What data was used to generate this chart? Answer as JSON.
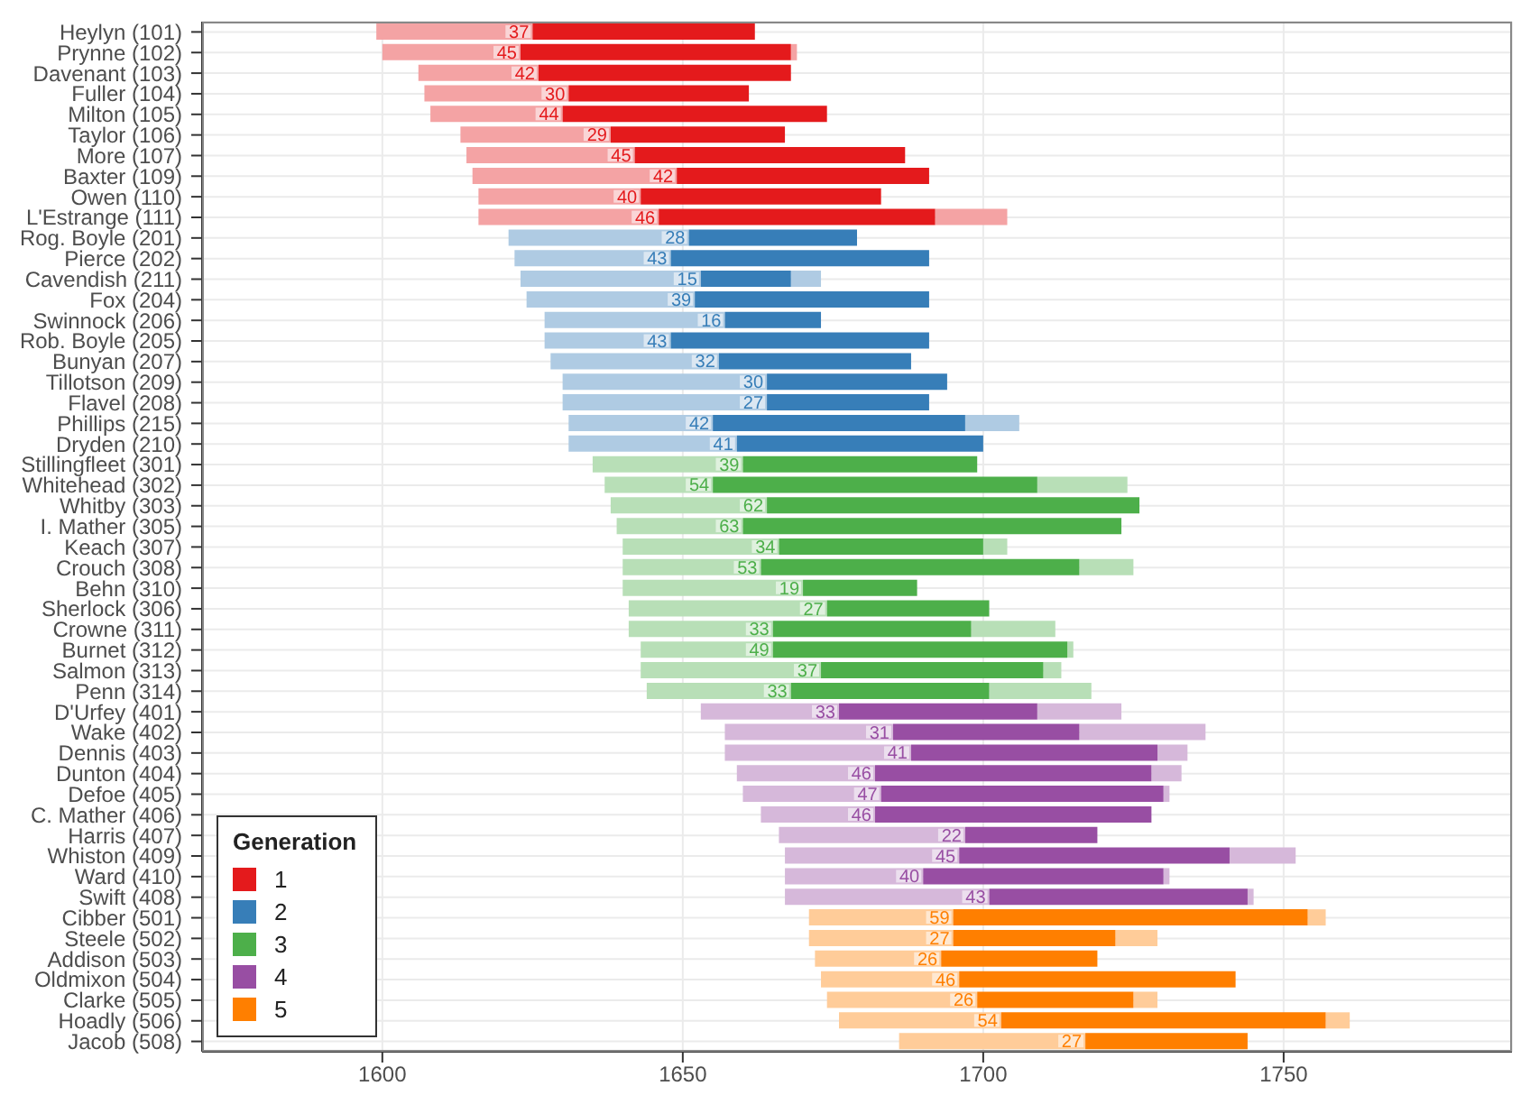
{
  "chart_data": {
    "type": "bar",
    "orientation": "horizontal",
    "legend_title": "Generation",
    "legend": "bottom left",
    "grid": true,
    "categories": [
      "Heylyn (101)",
      "Prynne (102)",
      "Davenant (103)",
      "Fuller (104)",
      "Milton (105)",
      "Taylor (106)",
      "More (107)",
      "Baxter (109)",
      "Owen (110)",
      "L'Estrange (111)",
      "Rog. Boyle (201)",
      "Pierce (202)",
      "Cavendish (211)",
      "Fox (204)",
      "Swinnock (206)",
      "Rob. Boyle (205)",
      "Bunyan (207)",
      "Tillotson (209)",
      "Flavel (208)",
      "Phillips (215)",
      "Dryden (210)",
      "Stillingfleet (301)",
      "Whitehead (302)",
      "Whitby (303)",
      "I. Mather (305)",
      "Keach (307)",
      "Crouch (308)",
      "Behn (310)",
      "Sherlock (306)",
      "Crowne (311)",
      "Burnet (312)",
      "Salmon (313)",
      "Penn (314)",
      "D'Urfey (401)",
      "Wake (402)",
      "Dennis (403)",
      "Dunton (404)",
      "Defoe (405)",
      "C. Mather (406)",
      "Harris (407)",
      "Whiston (409)",
      "Ward (410)",
      "Swift (408)",
      "Cibber (501)",
      "Steele (502)",
      "Addison (503)",
      "Oldmixon (504)",
      "Clarke (505)",
      "Hoadly (506)",
      "Jacob (508)"
    ],
    "xlim": [
      1570,
      1788
    ],
    "xticks": [
      1600,
      1650,
      1700,
      1750
    ],
    "series": [
      {
        "base": [
          1599,
          1600,
          1606,
          1607,
          1608,
          1613,
          1614,
          1615,
          1616,
          1616,
          1621,
          1622,
          1623,
          1624,
          1627,
          1627,
          1628,
          1630,
          1630,
          1631,
          1631,
          1635,
          1637,
          1638,
          1639,
          1640,
          1640,
          1640,
          1641,
          1641,
          1643,
          1643,
          1644,
          1653,
          1657,
          1657,
          1659,
          1660,
          1663,
          1666,
          1667,
          1667,
          1667,
          1671,
          1671,
          1672,
          1673,
          1674,
          1676,
          1686
        ],
        "values": [
          26,
          23,
          20,
          24,
          22,
          25,
          28,
          34,
          27,
          30,
          30,
          26,
          30,
          28,
          30,
          21,
          28,
          34,
          34,
          24,
          28,
          25,
          18,
          26,
          21,
          26,
          23,
          30,
          33,
          24,
          22,
          30,
          24,
          23,
          28,
          31,
          23,
          23,
          19,
          31,
          29,
          23,
          34,
          24,
          24,
          21,
          23,
          25,
          27,
          31
        ],
        "colors": [
          "#f4a3a4",
          "#f4a3a4",
          "#f4a3a4",
          "#f4a3a4",
          "#f4a3a4",
          "#f4a3a4",
          "#f4a3a4",
          "#f4a3a4",
          "#f4a3a4",
          "#f4a3a4",
          "#afcbe3",
          "#afcbe3",
          "#afcbe3",
          "#afcbe3",
          "#afcbe3",
          "#afcbe3",
          "#afcbe3",
          "#afcbe3",
          "#afcbe3",
          "#afcbe3",
          "#afcbe3",
          "#b8dfb7",
          "#b8dfb7",
          "#b8dfb7",
          "#b8dfb7",
          "#b8dfb7",
          "#b8dfb7",
          "#b8dfb7",
          "#b8dfb7",
          "#b8dfb7",
          "#b8dfb7",
          "#b8dfb7",
          "#b8dfb7",
          "#d6b8da",
          "#d6b8da",
          "#d6b8da",
          "#d6b8da",
          "#d6b8da",
          "#d6b8da",
          "#d6b8da",
          "#d6b8da",
          "#d6b8da",
          "#d6b8da",
          "#ffcc99",
          "#ffcc99",
          "#ffcc99",
          "#ffcc99",
          "#ffcc99",
          "#ffcc99",
          "#ffcc99"
        ]
      },
      {
        "base": [
          null,
          1668,
          null,
          null,
          null,
          null,
          null,
          null,
          null,
          1692,
          null,
          null,
          1668,
          null,
          null,
          null,
          null,
          null,
          null,
          1697,
          null,
          null,
          1709,
          null,
          null,
          1700,
          1716,
          null,
          null,
          1698,
          1714,
          1710,
          1701,
          1709,
          1716,
          1729,
          1728,
          1730,
          null,
          null,
          1741,
          1730,
          1744,
          1754,
          1722,
          null,
          null,
          1725,
          1757,
          null
        ],
        "values": [
          null,
          1,
          null,
          null,
          null,
          null,
          null,
          null,
          null,
          12,
          null,
          null,
          5,
          null,
          null,
          null,
          null,
          null,
          null,
          9,
          null,
          null,
          15,
          null,
          null,
          4,
          9,
          null,
          null,
          14,
          1,
          3,
          17,
          14,
          21,
          5,
          5,
          1,
          null,
          null,
          11,
          1,
          1,
          3,
          7,
          null,
          null,
          4,
          4,
          null
        ],
        "colors": [
          "#f4a3a4",
          "#f4a3a4",
          "#f4a3a4",
          "#f4a3a4",
          "#f4a3a4",
          "#f4a3a4",
          "#f4a3a4",
          "#f4a3a4",
          "#f4a3a4",
          "#f4a3a4",
          "#afcbe3",
          "#afcbe3",
          "#afcbe3",
          "#afcbe3",
          "#afcbe3",
          "#afcbe3",
          "#afcbe3",
          "#afcbe3",
          "#afcbe3",
          "#afcbe3",
          "#afcbe3",
          "#b8dfb7",
          "#b8dfb7",
          "#b8dfb7",
          "#b8dfb7",
          "#b8dfb7",
          "#b8dfb7",
          "#b8dfb7",
          "#b8dfb7",
          "#b8dfb7",
          "#b8dfb7",
          "#b8dfb7",
          "#b8dfb7",
          "#d6b8da",
          "#d6b8da",
          "#d6b8da",
          "#d6b8da",
          "#d6b8da",
          "#d6b8da",
          "#d6b8da",
          "#d6b8da",
          "#d6b8da",
          "#d6b8da",
          "#ffcc99",
          "#ffcc99",
          "#ffcc99",
          "#ffcc99",
          "#ffcc99",
          "#ffcc99",
          "#ffcc99"
        ]
      },
      {
        "name": "1",
        "color": "#e41a1c",
        "base": [
          1625,
          1623,
          1626,
          1631,
          1630,
          1638,
          1642,
          1649,
          1643,
          1646,
          null,
          null,
          null,
          null,
          null,
          null,
          null,
          null,
          null,
          null,
          null,
          null,
          null,
          null,
          null,
          null,
          null,
          null,
          null,
          null,
          null,
          null,
          null,
          null,
          null,
          null,
          null,
          null,
          null,
          null,
          null,
          null,
          null,
          null,
          null,
          null,
          null,
          null,
          null,
          null
        ],
        "values": [
          37,
          45,
          42,
          30,
          44,
          29,
          45,
          42,
          40,
          46,
          null,
          null,
          null,
          null,
          null,
          null,
          null,
          null,
          null,
          null,
          null,
          null,
          null,
          null,
          null,
          null,
          null,
          null,
          null,
          null,
          null,
          null,
          null,
          null,
          null,
          null,
          null,
          null,
          null,
          null,
          null,
          null,
          null,
          null,
          null,
          null,
          null,
          null,
          null,
          null
        ],
        "data_labels": true
      },
      {
        "name": "2",
        "color": "#377eb8",
        "base": [
          null,
          null,
          null,
          null,
          null,
          null,
          null,
          null,
          null,
          null,
          1651,
          1648,
          1653,
          1652,
          1657,
          1648,
          1656,
          1664,
          1664,
          1655,
          1659,
          null,
          null,
          null,
          null,
          null,
          null,
          null,
          null,
          null,
          null,
          null,
          null,
          null,
          null,
          null,
          null,
          null,
          null,
          null,
          null,
          null,
          null,
          null,
          null,
          null,
          null,
          null,
          null,
          null
        ],
        "values": [
          null,
          null,
          null,
          null,
          null,
          null,
          null,
          null,
          null,
          null,
          28,
          43,
          15,
          39,
          16,
          43,
          32,
          30,
          27,
          42,
          41,
          null,
          null,
          null,
          null,
          null,
          null,
          null,
          null,
          null,
          null,
          null,
          null,
          null,
          null,
          null,
          null,
          null,
          null,
          null,
          null,
          null,
          null,
          null,
          null,
          null,
          null,
          null,
          null,
          null
        ],
        "data_labels": true
      },
      {
        "name": "3",
        "color": "#4daf4a",
        "base": [
          null,
          null,
          null,
          null,
          null,
          null,
          null,
          null,
          null,
          null,
          null,
          null,
          null,
          null,
          null,
          null,
          null,
          null,
          null,
          null,
          null,
          1660,
          1655,
          1664,
          1660,
          1666,
          1663,
          1670,
          1674,
          1665,
          1665,
          1673,
          1668,
          null,
          null,
          null,
          null,
          null,
          null,
          null,
          null,
          null,
          null,
          null,
          null,
          null,
          null,
          null,
          null,
          null
        ],
        "values": [
          null,
          null,
          null,
          null,
          null,
          null,
          null,
          null,
          null,
          null,
          null,
          null,
          null,
          null,
          null,
          null,
          null,
          null,
          null,
          null,
          null,
          39,
          54,
          62,
          63,
          34,
          53,
          19,
          27,
          33,
          49,
          37,
          33,
          null,
          null,
          null,
          null,
          null,
          null,
          null,
          null,
          null,
          null,
          null,
          null,
          null,
          null,
          null,
          null,
          null
        ],
        "data_labels": true
      },
      {
        "name": "4",
        "color": "#984ea3",
        "base": [
          null,
          null,
          null,
          null,
          null,
          null,
          null,
          null,
          null,
          null,
          null,
          null,
          null,
          null,
          null,
          null,
          null,
          null,
          null,
          null,
          null,
          null,
          null,
          null,
          null,
          null,
          null,
          null,
          null,
          null,
          null,
          null,
          null,
          1676,
          1685,
          1688,
          1682,
          1683,
          1682,
          1697,
          1696,
          1690,
          1701,
          null,
          null,
          null,
          null,
          null,
          null,
          null
        ],
        "values": [
          null,
          null,
          null,
          null,
          null,
          null,
          null,
          null,
          null,
          null,
          null,
          null,
          null,
          null,
          null,
          null,
          null,
          null,
          null,
          null,
          null,
          null,
          null,
          null,
          null,
          null,
          null,
          null,
          null,
          null,
          null,
          null,
          null,
          33,
          31,
          41,
          46,
          47,
          46,
          22,
          45,
          40,
          43,
          null,
          null,
          null,
          null,
          null,
          null,
          null
        ],
        "data_labels": true
      },
      {
        "name": "5",
        "color": "#ff7f00",
        "base": [
          null,
          null,
          null,
          null,
          null,
          null,
          null,
          null,
          null,
          null,
          null,
          null,
          null,
          null,
          null,
          null,
          null,
          null,
          null,
          null,
          null,
          null,
          null,
          null,
          null,
          null,
          null,
          null,
          null,
          null,
          null,
          null,
          null,
          null,
          null,
          null,
          null,
          null,
          null,
          null,
          null,
          null,
          null,
          1695,
          1695,
          1693,
          1696,
          1699,
          1703,
          1717
        ],
        "values": [
          null,
          null,
          null,
          null,
          null,
          null,
          null,
          null,
          null,
          null,
          null,
          null,
          null,
          null,
          null,
          null,
          null,
          null,
          null,
          null,
          null,
          null,
          null,
          null,
          null,
          null,
          null,
          null,
          null,
          null,
          null,
          null,
          null,
          null,
          null,
          null,
          null,
          null,
          null,
          null,
          null,
          null,
          null,
          59,
          27,
          26,
          46,
          26,
          54,
          27
        ],
        "data_labels": true
      }
    ]
  }
}
